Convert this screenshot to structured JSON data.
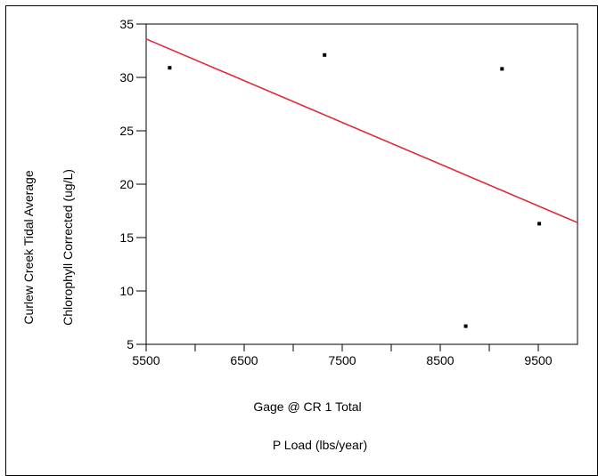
{
  "chart_data": {
    "type": "scatter",
    "title": "",
    "xlabel_line1": "Gage @ CR 1   Total",
    "xlabel_line2": "P Load (lbs/year)",
    "ylabel_line1": "Curlew Creek Tidal Average",
    "ylabel_line2": "Chlorophyll Corrected (ug/L)",
    "xlim": [
      5500,
      9900
    ],
    "ylim": [
      5,
      35
    ],
    "xticks": [
      5500,
      6500,
      7500,
      8500,
      9500
    ],
    "xtick_labels": [
      "5500",
      "6500",
      "7500",
      "8500",
      "9500"
    ],
    "xminor_ticks": [
      6000,
      7000,
      8000,
      9000
    ],
    "yticks": [
      5,
      10,
      15,
      20,
      25,
      30,
      35
    ],
    "ytick_labels": [
      "5",
      "10",
      "15",
      "20",
      "25",
      "30",
      "35"
    ],
    "grid": false,
    "points": {
      "x": [
        5740,
        7320,
        8760,
        9130,
        9510
      ],
      "y": [
        30.9,
        32.1,
        6.7,
        30.8,
        16.3
      ]
    },
    "fit_line": {
      "x": [
        5500,
        9900
      ],
      "y": [
        33.6,
        16.4
      ],
      "color": "#e02a3c"
    },
    "point_color": "#000000"
  }
}
